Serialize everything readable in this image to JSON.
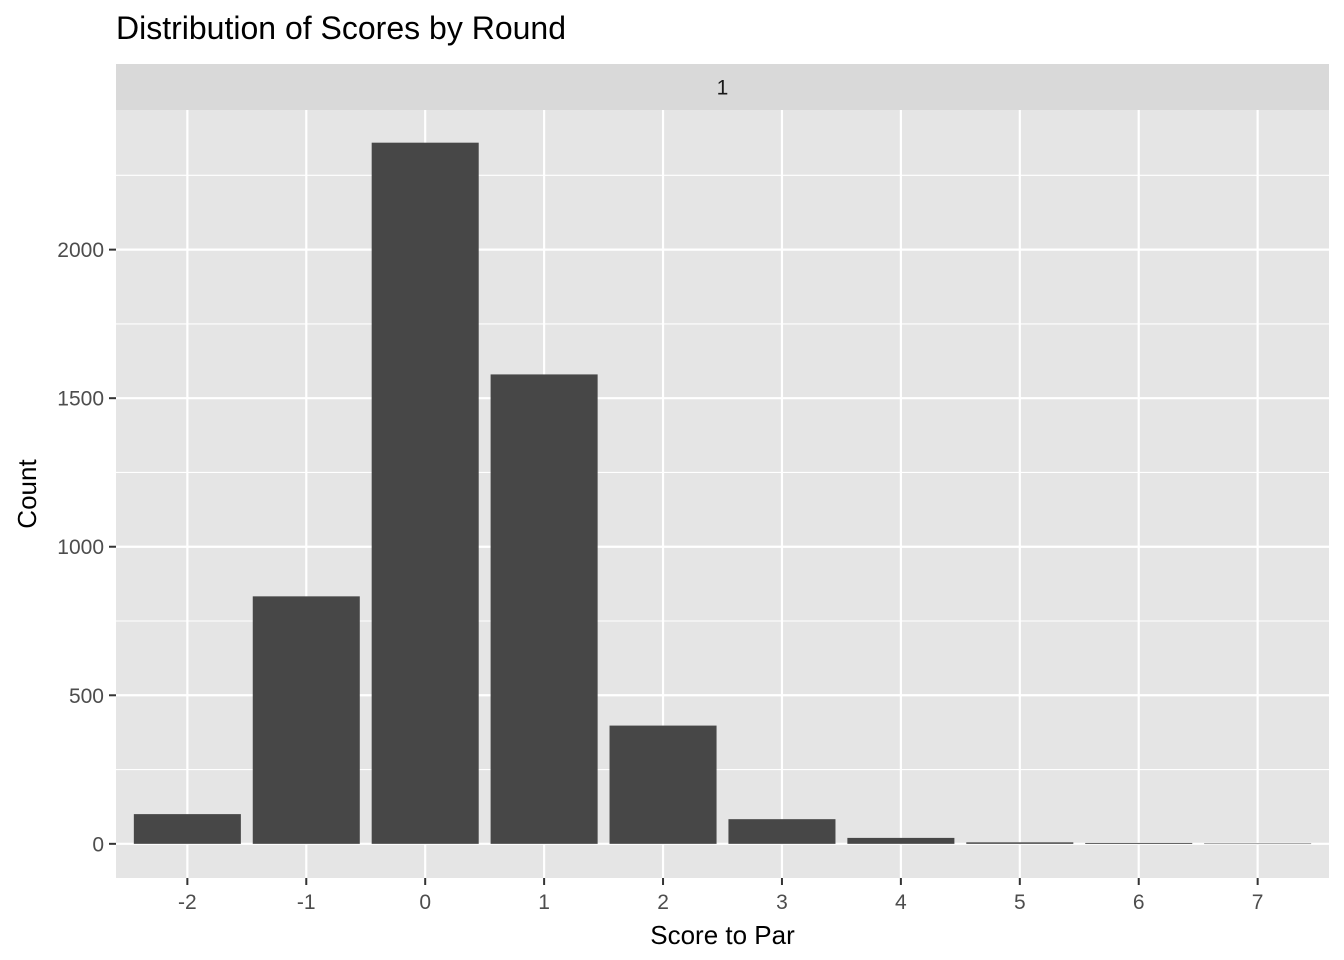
{
  "chart_data": {
    "type": "bar",
    "title": "Distribution of Scores by Round",
    "facet_label": "1",
    "xlabel": "Score to Par",
    "ylabel": "Count",
    "categories": [
      "-2",
      "-1",
      "0",
      "1",
      "2",
      "3",
      "4",
      "5",
      "6",
      "7"
    ],
    "values": [
      100,
      833,
      2360,
      1580,
      398,
      83,
      20,
      5,
      3,
      1
    ],
    "ylim": [
      -115,
      2470
    ],
    "yticks": [
      0,
      500,
      1000,
      1500,
      2000
    ],
    "yticks_minor": [
      250,
      750,
      1250,
      1750,
      2250
    ],
    "grid": true,
    "colors": {
      "bar": "#474747",
      "panel": "#e5e5e5",
      "strip": "#d9d9d9",
      "grid": "#ffffff"
    }
  }
}
